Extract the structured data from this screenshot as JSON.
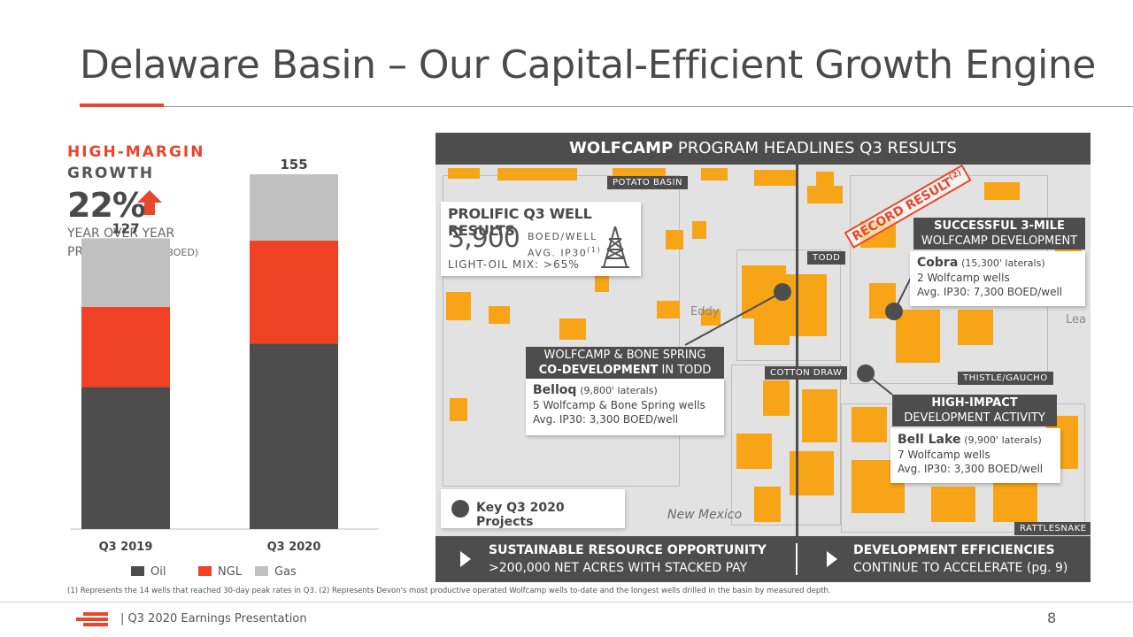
{
  "title": "Delaware Basin – Our Capital-Efficient Growth Engine",
  "left": {
    "heading_1": "HIGH-MARGIN",
    "heading_2": "GROWTH",
    "growth_pct": "22%",
    "sub_1": "YEAR OVER YEAR",
    "sub_2": "PRODUCTION",
    "sub_unit": "(MBOED)"
  },
  "chart_data": {
    "type": "bar",
    "stacked": true,
    "categories": [
      "Q3 2019",
      "Q3 2020"
    ],
    "totals": [
      127,
      155
    ],
    "series": [
      {
        "name": "Oil",
        "color": "#4d4d4d",
        "values": [
          62,
          81
        ]
      },
      {
        "name": "NGL",
        "color": "#f04124",
        "values": [
          35,
          45
        ]
      },
      {
        "name": "Gas",
        "color": "#c0c0c0",
        "values": [
          30,
          29
        ]
      }
    ],
    "title": "",
    "xlabel": "",
    "ylabel": "",
    "ylim": [
      0,
      160
    ],
    "grid": false,
    "legend": "bottom"
  },
  "panel": {
    "head_bold": "WOLFCAMP",
    "head_rest": " PROGRAM HEADLINES Q3 RESULTS",
    "prolific_title": "PROLIFIC Q3 WELL RESULTS",
    "prolific_value": "3,900",
    "prolific_unit_1": "BOED/WELL",
    "prolific_unit_2": "AVG. IP30",
    "prolific_unit_sup": "(1)",
    "prolific_mix": "LIGHT-OIL MIX: >65%",
    "record_text": "RECORD RESULT",
    "record_sup": "(2)",
    "regions": {
      "potato": "POTATO BASIN",
      "todd": "TODD",
      "cotton": "COTTON DRAW",
      "thistle": "THISTLE/GAUCHO",
      "rattlesnake": "RATTLESNAKE"
    },
    "places": {
      "eddy": "Eddy",
      "lea": "Lea",
      "new_mexico": "New Mexico"
    },
    "callout_todd": {
      "head_1": "WOLFCAMP & BONE SPRING",
      "head_2_bold": "CO-DEVELOPMENT",
      "head_2_rest": " IN TODD",
      "name": "Belloq",
      "laterals": "(9,800' laterals)",
      "line_1": "5 Wolfcamp & Bone Spring wells",
      "line_2": "Avg. IP30: 3,300 BOED/well"
    },
    "callout_cobra": {
      "head_1": "SUCCESSFUL 3-MILE",
      "head_2": "WOLFCAMP DEVELOPMENT",
      "name": "Cobra",
      "laterals": "(15,300' laterals)",
      "line_1": "2 Wolfcamp wells",
      "line_2": "Avg. IP30: 7,300 BOED/well"
    },
    "callout_bell": {
      "head_1": "HIGH-IMPACT",
      "head_2": "DEVELOPMENT ACTIVITY",
      "name": "Bell Lake",
      "laterals": "(9,900' laterals)",
      "line_1": "7 Wolfcamp wells",
      "line_2": "Avg. IP30: 3,300 BOED/well"
    },
    "legend_label": "Key Q3 2020 Projects",
    "foot_left_1": "SUSTAINABLE RESOURCE OPPORTUNITY",
    "foot_left_2": ">200,000 NET ACRES WITH STACKED PAY",
    "foot_right_1": "DEVELOPMENT EFFICIENCIES",
    "foot_right_2": "CONTINUE TO ACCELERATE (pg. 9)"
  },
  "footnote": "(1) Represents the 14 wells that reached 30-day peak rates in Q3. (2) Represents Devon's most productive operated Wolfcamp wells to-date and the longest wells drilled in the basin by measured depth.",
  "footer": {
    "presentation": "|   Q3 2020 Earnings Presentation",
    "page": "8"
  },
  "colors": {
    "accent": "#e8472b",
    "dark": "#4d4d4d",
    "acreage": "#f7a416"
  }
}
